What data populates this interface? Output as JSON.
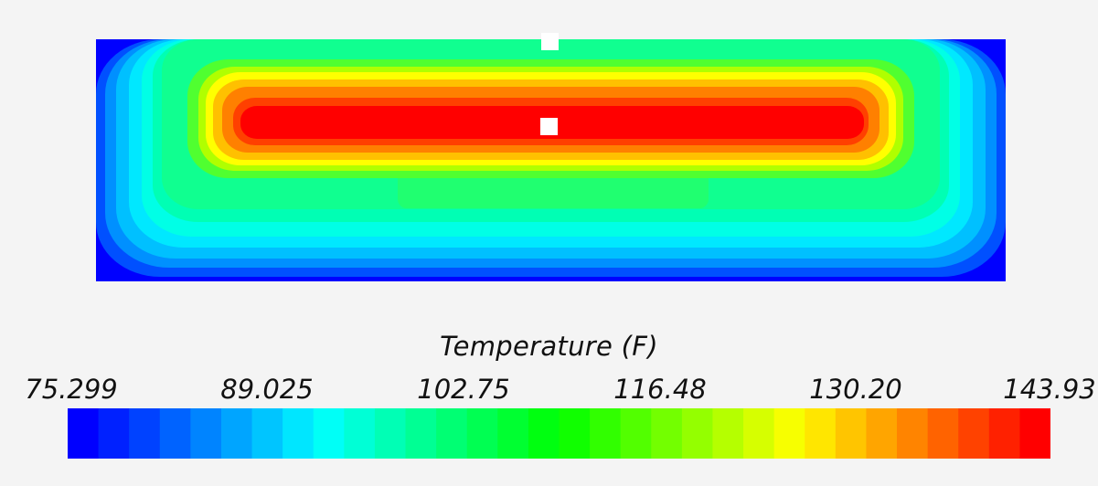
{
  "chart_data": {
    "type": "heatmap",
    "title": "",
    "quantity": "Temperature (F)",
    "colorbar": {
      "title": "Temperature (F)",
      "min": 75.299,
      "max": 143.93,
      "ticks": [
        "75.299",
        "89.025",
        "102.75",
        "116.48",
        "130.20",
        "143.93"
      ],
      "tick_values": [
        75.299,
        89.025,
        102.75,
        116.48,
        130.2,
        143.93
      ],
      "colormap": "rainbow",
      "bands": 32,
      "colors": [
        "#0000ff",
        "#00ffff",
        "#00ff00",
        "#ffff00",
        "#ff0000"
      ],
      "placement": "bottom"
    },
    "field": {
      "description_values": {
        "boundary_min": 75.299,
        "core_max": 143.93,
        "bulk_near": 108
      },
      "probe_markers": 2
    },
    "grid": false
  }
}
